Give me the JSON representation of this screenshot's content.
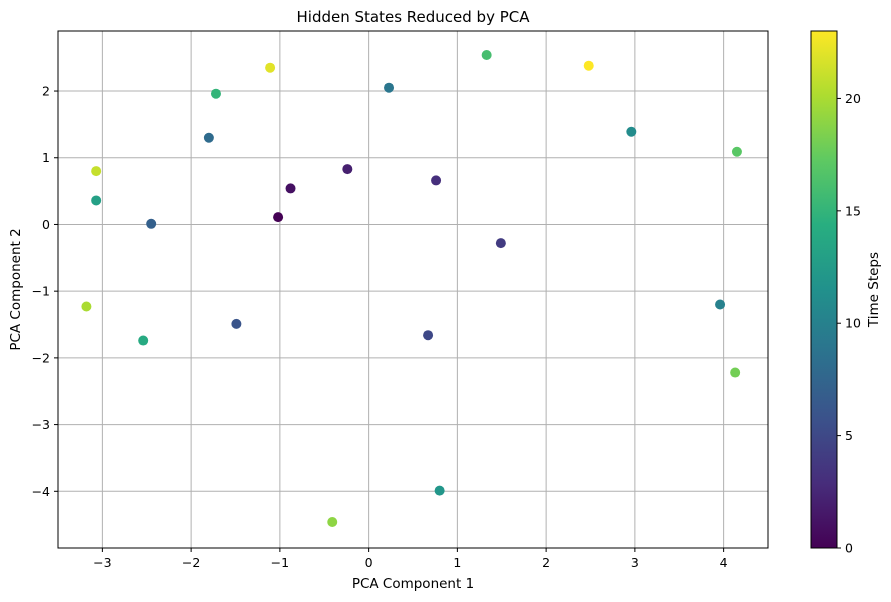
{
  "chart_data": {
    "type": "scatter",
    "title": "Hidden States Reduced by PCA",
    "xlabel": "PCA Component 1",
    "ylabel": "PCA Component 2",
    "xlim": [
      -3.5,
      4.5
    ],
    "ylim": [
      -4.85,
      2.9
    ],
    "xticks": [
      -3,
      -2,
      -1,
      0,
      1,
      2,
      3,
      4
    ],
    "yticks": [
      -4,
      -3,
      -2,
      -1,
      0,
      1,
      2
    ],
    "grid": true,
    "colorbar": {
      "label": "Time Steps",
      "colormap": "viridis",
      "range": [
        0,
        23
      ],
      "ticks": [
        0,
        5,
        10,
        15,
        20
      ]
    },
    "points": [
      {
        "x": -1.02,
        "y": 0.11,
        "t": 0
      },
      {
        "x": -0.88,
        "y": 0.54,
        "t": 1
      },
      {
        "x": -0.24,
        "y": 0.83,
        "t": 2
      },
      {
        "x": 0.76,
        "y": 0.66,
        "t": 3
      },
      {
        "x": 1.49,
        "y": -0.28,
        "t": 4
      },
      {
        "x": 0.67,
        "y": -1.66,
        "t": 5
      },
      {
        "x": -1.49,
        "y": -1.49,
        "t": 6
      },
      {
        "x": -2.45,
        "y": 0.01,
        "t": 7
      },
      {
        "x": -1.8,
        "y": 1.3,
        "t": 8
      },
      {
        "x": 0.23,
        "y": 2.05,
        "t": 9
      },
      {
        "x": 3.96,
        "y": -1.2,
        "t": 10
      },
      {
        "x": 2.96,
        "y": 1.39,
        "t": 11
      },
      {
        "x": 0.8,
        "y": -3.99,
        "t": 12
      },
      {
        "x": -3.07,
        "y": 0.36,
        "t": 13
      },
      {
        "x": -2.54,
        "y": -1.74,
        "t": 14
      },
      {
        "x": -1.72,
        "y": 1.96,
        "t": 15
      },
      {
        "x": 1.33,
        "y": 2.54,
        "t": 16
      },
      {
        "x": 4.15,
        "y": 1.09,
        "t": 17
      },
      {
        "x": 4.13,
        "y": -2.22,
        "t": 18
      },
      {
        "x": -0.41,
        "y": -4.46,
        "t": 19
      },
      {
        "x": -3.18,
        "y": -1.23,
        "t": 20
      },
      {
        "x": -3.07,
        "y": 0.8,
        "t": 21
      },
      {
        "x": -1.11,
        "y": 2.35,
        "t": 22
      },
      {
        "x": 2.48,
        "y": 2.38,
        "t": 23
      }
    ]
  }
}
